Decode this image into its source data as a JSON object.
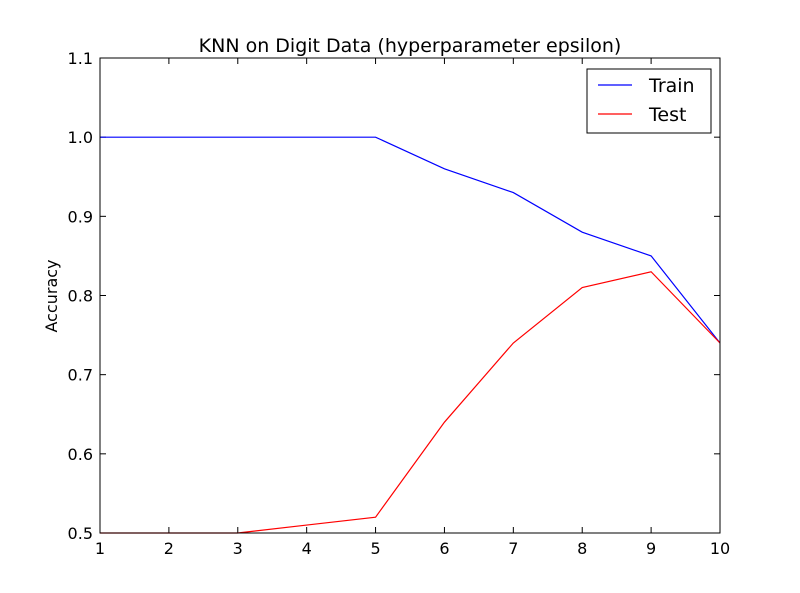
{
  "chart_data": {
    "type": "line",
    "title": "KNN on Digit Data (hyperparameter epsilon)",
    "xlabel": "",
    "ylabel": "Accuracy",
    "x": [
      1,
      2,
      3,
      4,
      5,
      6,
      7,
      8,
      9,
      10
    ],
    "xlim": [
      1,
      10
    ],
    "ylim": [
      0.5,
      1.1
    ],
    "xticks": [
      1,
      2,
      3,
      4,
      5,
      6,
      7,
      8,
      9,
      10
    ],
    "yticks": [
      0.5,
      0.6,
      0.7,
      0.8,
      0.9,
      1.0,
      1.1
    ],
    "ytick_labels": [
      "0.5",
      "0.6",
      "0.7",
      "0.8",
      "0.9",
      "1.0",
      "1.1"
    ],
    "grid": false,
    "legend_position": "top-right",
    "series": [
      {
        "name": "Train",
        "color": "#0000ff",
        "values": [
          1.0,
          1.0,
          1.0,
          1.0,
          1.0,
          0.96,
          0.93,
          0.88,
          0.85,
          0.74
        ]
      },
      {
        "name": "Test",
        "color": "#ff0000",
        "values": [
          0.5,
          0.5,
          0.5,
          0.51,
          0.52,
          0.64,
          0.74,
          0.81,
          0.83,
          0.74
        ]
      }
    ]
  }
}
